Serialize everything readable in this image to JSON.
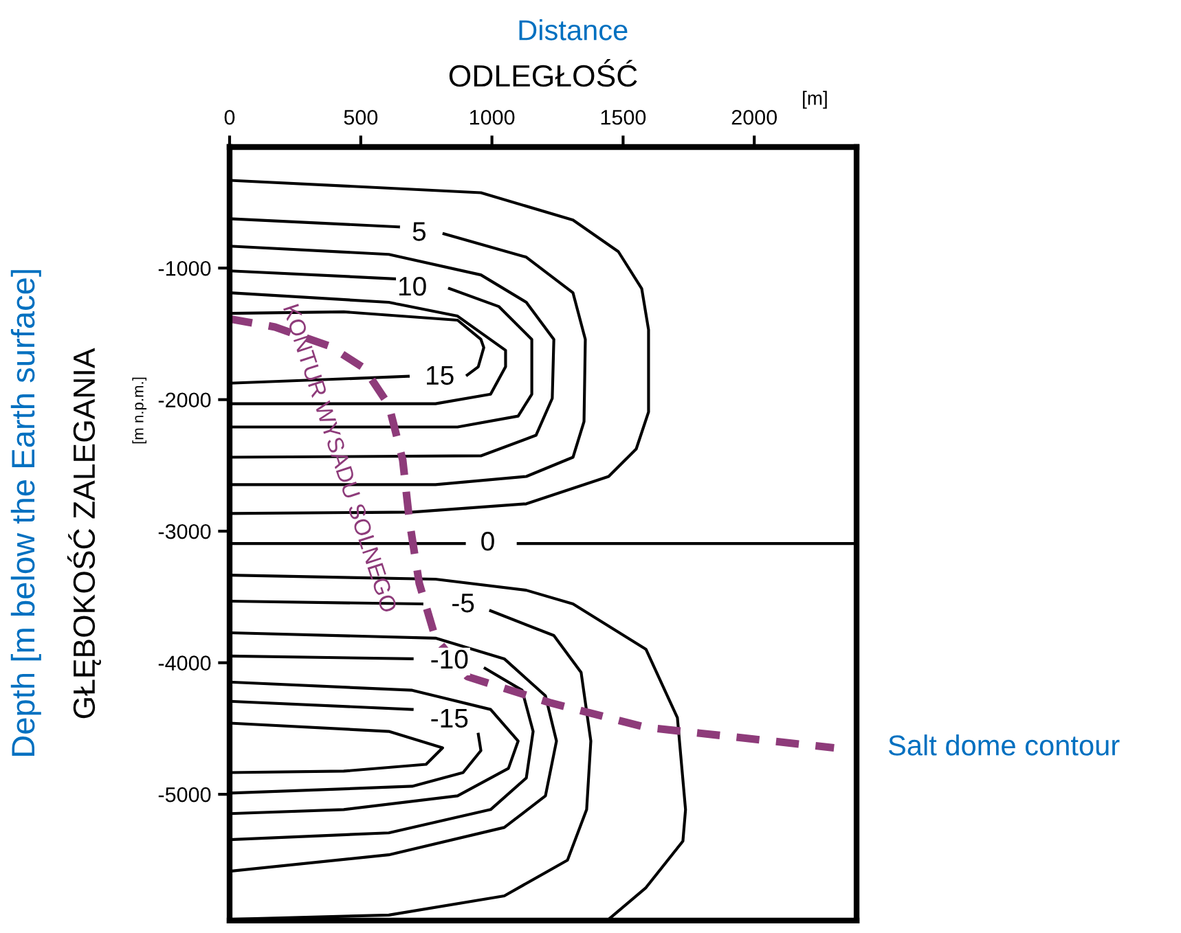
{
  "chart_data": {
    "type": "line",
    "xlabel": "ODLEGŁOŚĆ",
    "ylabel": "GŁĘBOKOŚĆ ZALEGANIA",
    "xlim": [
      0,
      2390
    ],
    "xticks": [
      0,
      500,
      1000,
      1500,
      2000
    ],
    "ylim": [
      -5960,
      -80
    ],
    "yticks": [
      -1000,
      -2000,
      -3000,
      -4000,
      -5000
    ],
    "grid": false,
    "legend": false,
    "marker": "none",
    "line_style": "solid",
    "series": [
      {
        "color": "#000000",
        "x": [
          0,
          958,
          1309,
          1482,
          1571,
          1597,
          1597,
          1550,
          1445,
          1131,
          696,
          0
        ],
        "values": [
          -333,
          -427,
          -635,
          -875,
          -1156,
          -1469,
          -2094,
          -2375,
          -2584,
          -2792,
          -2855,
          -2865
        ]
      },
      {
        "color": "#000000",
        "x": [
          0,
          644,
          730,
          817,
          1131,
          1309,
          1356,
          1351,
          1309,
          1131,
          785,
          0
        ],
        "values": [
          -625,
          -687,
          null,
          -739,
          -917,
          -1188,
          -1542,
          -2167,
          -2438,
          -2584,
          -2646,
          -2646
        ]
      },
      {
        "color": "#000000",
        "x": [
          0,
          607,
          958,
          1131,
          1236,
          1230,
          1168,
          958,
          0
        ],
        "values": [
          -833,
          -896,
          -1052,
          -1260,
          -1542,
          -1990,
          -2271,
          -2427,
          -2438
        ]
      },
      {
        "color": "#000000",
        "x": [
          0,
          644,
          740,
          838,
          1026,
          1152,
          1152,
          1100,
          869,
          0
        ],
        "values": [
          -1021,
          -1083,
          null,
          -1156,
          -1292,
          -1542,
          -1959,
          -2125,
          -2208,
          -2208
        ]
      },
      {
        "color": "#000000",
        "x": [
          0,
          607,
          869,
          1052,
          1052,
          995,
          785,
          0
        ],
        "values": [
          -1188,
          -1260,
          -1365,
          -1625,
          -1750,
          -1959,
          -2031,
          -2031
        ]
      },
      {
        "color": "#000000",
        "x": [
          0,
          435,
          869,
          958,
          969,
          948,
          906,
          800,
          681,
          0
        ],
        "values": [
          -1344,
          -1333,
          -1396,
          -1542,
          -1604,
          -1750,
          -1813,
          null,
          -1823,
          -1875
        ]
      },
      {
        "color": "#000000",
        "x": [
          0,
          895,
          1000,
          1100,
          2390
        ],
        "values": [
          -3094,
          -3094,
          null,
          -3094,
          -3094
        ]
      },
      {
        "color": "#000000",
        "x": [
          0,
          785,
          1131,
          1309,
          1587,
          1707,
          1738,
          1728,
          1587,
          1445
        ],
        "values": [
          -3334,
          -3365,
          -3449,
          -3553,
          -3897,
          -4418,
          -5116,
          -5356,
          -5710,
          -5950
        ]
      },
      {
        "color": "#000000",
        "x": [
          0,
          733,
          850,
          995,
          1236,
          1340,
          1377,
          1361,
          1288,
          1047,
          607,
          0
        ],
        "values": [
          -3532,
          -3553,
          null,
          -3605,
          -3793,
          -4074,
          -4595,
          -5116,
          -5501,
          -5772,
          -5918,
          -5950
        ]
      },
      {
        "color": "#000000",
        "x": [
          0,
          785,
          1047,
          1204,
          1246,
          1204,
          1047,
          607,
          0
        ],
        "values": [
          -3772,
          -3813,
          -3970,
          -4251,
          -4595,
          -5012,
          -5252,
          -5460,
          -5585
        ]
      },
      {
        "color": "#000000",
        "x": [
          0,
          696,
          820,
          974,
          1115,
          1157,
          1131,
          995,
          607,
          0
        ],
        "values": [
          -3949,
          -3970,
          null,
          -4043,
          -4209,
          -4522,
          -4876,
          -5116,
          -5293,
          -5345
        ]
      },
      {
        "color": "#000000",
        "x": [
          0,
          696,
          995,
          1100,
          1063,
          869,
          435,
          0
        ],
        "values": [
          -4147,
          -4209,
          -4355,
          -4595,
          -4803,
          -5012,
          -5116,
          -5147
        ]
      },
      {
        "color": "#000000",
        "x": [
          0,
          696,
          800,
          948,
          958,
          890,
          696,
          0
        ],
        "values": [
          -4293,
          -4355,
          null,
          -4543,
          -4668,
          -4835,
          -4939,
          -4991
        ]
      },
      {
        "color": "#000000",
        "x": [
          0,
          607,
          812,
          749,
          435,
          0
        ],
        "values": [
          -4459,
          -4522,
          -4647,
          -4772,
          -4824,
          -4835
        ]
      },
      {
        "color": "#8e3b7a",
        "line_style": "dashed",
        "x": [
          0,
          173,
          382,
          513,
          607,
          660,
          686,
          723,
          785,
          906,
          1220,
          1587,
          2304
        ],
        "values": [
          -1386,
          -1448,
          -1594,
          -1761,
          -2042,
          -2459,
          -2928,
          -3397,
          -3813,
          -4105,
          -4303,
          -4491,
          -4647
        ]
      }
    ],
    "annotations": [
      "Distance",
      "[m]",
      "[m n.p.m.]",
      "Depth [m below the Earth surface]",
      {
        "text": "Salt dome contour",
        "x": 2304,
        "y": -4647
      },
      {
        "text": "KONTUR WYSADU SOLNEGO",
        "x": 560,
        "y": -2450
      },
      {
        "text": "5",
        "x": 723,
        "y": -739
      },
      {
        "text": "10",
        "x": 696,
        "y": -1156
      },
      {
        "text": "15",
        "x": 801,
        "y": -1833
      },
      {
        "text": "0",
        "x": 984,
        "y": -3094
      },
      {
        "text": "-5",
        "x": 890,
        "y": -3563
      },
      {
        "text": "-10",
        "x": 838,
        "y": -3991
      },
      {
        "text": "-15",
        "x": 838,
        "y": -4439
      }
    ]
  }
}
